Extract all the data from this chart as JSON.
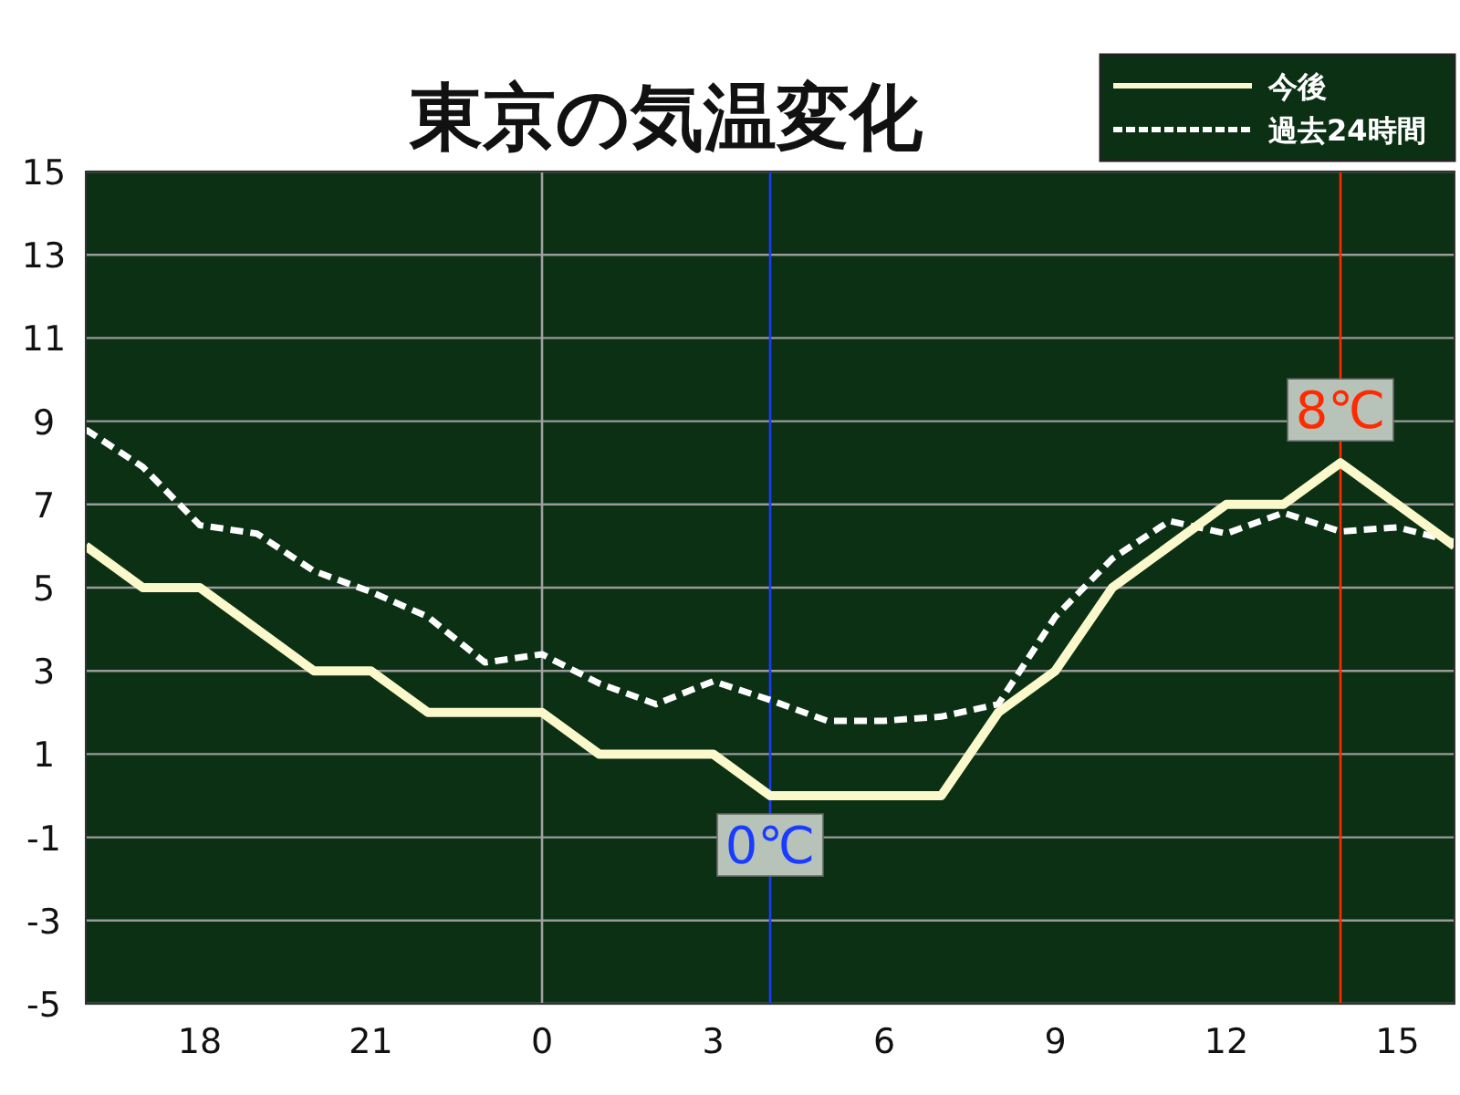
{
  "chart_data": {
    "type": "line",
    "title": "東京の気温変化",
    "x": [
      "--01-01T16:00",
      "--01-01T17:00",
      "--01-01T18:00",
      "--01-01T19:00",
      "--01-01T20:00",
      "--01-01T21:00",
      "--01-01T22:00",
      "--01-01T23:00",
      "--01-02T00:00",
      "--01-02T01:00",
      "--01-02T02:00",
      "--01-02T03:00",
      "--01-02T04:00",
      "--01-02T05:00",
      "--01-02T06:00",
      "--01-02T07:00",
      "--01-02T08:00",
      "--01-02T09:00",
      "--01-02T10:00",
      "--01-02T11:00",
      "--01-02T12:00",
      "--01-02T13:00",
      "--01-02T14:00",
      "--01-02T15:00",
      "--01-02T16:00"
    ],
    "series": [
      {
        "name": "今後",
        "color": "#fbf8cc",
        "line_style": "solid",
        "values": [
          6,
          5,
          5,
          4,
          3,
          3,
          2,
          2,
          2,
          1,
          1,
          1,
          0,
          0,
          0,
          0,
          2,
          3,
          5,
          6,
          7,
          7,
          8,
          7,
          6
        ]
      },
      {
        "name": "過去24時間",
        "color": "#ffffff",
        "line_style": "dashed",
        "values": [
          8.8,
          7.9,
          6.5,
          6.3,
          5.4,
          4.9,
          4.3,
          3.2,
          3.4,
          2.7,
          2.2,
          2.75,
          2.3,
          1.8,
          1.8,
          1.9,
          2.2,
          4.3,
          5.7,
          6.6,
          6.3,
          6.8,
          6.35,
          6.45,
          6.1
        ]
      }
    ],
    "xlim": [
      "--01-01T16:00",
      "--01-02T16:00"
    ],
    "xticks": [
      {
        "value": "--01-01T18:00",
        "label": "18"
      },
      {
        "value": "--01-01T21:00",
        "label": "21"
      },
      {
        "value": "--01-02T00:00",
        "label": "0"
      },
      {
        "value": "--01-02T03:00",
        "label": "3"
      },
      {
        "value": "--01-02T06:00",
        "label": "6"
      },
      {
        "value": "--01-02T09:00",
        "label": "9"
      },
      {
        "value": "--01-02T12:00",
        "label": "12"
      },
      {
        "value": "--01-02T15:00",
        "label": "15"
      }
    ],
    "ylim": [
      -5,
      15
    ],
    "yticks": [
      -5,
      -3,
      -1,
      1,
      3,
      5,
      7,
      9,
      11,
      13,
      15
    ],
    "grid": "y",
    "legend": "top right",
    "ref_lines": [
      {
        "axis": "x",
        "value": "--01-02T00:00",
        "color": "#a0a0a0"
      },
      {
        "axis": "x",
        "value": "--01-02T04:00",
        "color": "#1a3cff"
      },
      {
        "axis": "x",
        "value": "--01-02T14:00",
        "color": "#ff2a00"
      }
    ],
    "annotations": [
      {
        "text": "0℃",
        "x": "--01-02T04:00",
        "y": 0
      },
      {
        "text": "8℃",
        "x": "--01-02T14:00",
        "y": 8
      }
    ]
  }
}
